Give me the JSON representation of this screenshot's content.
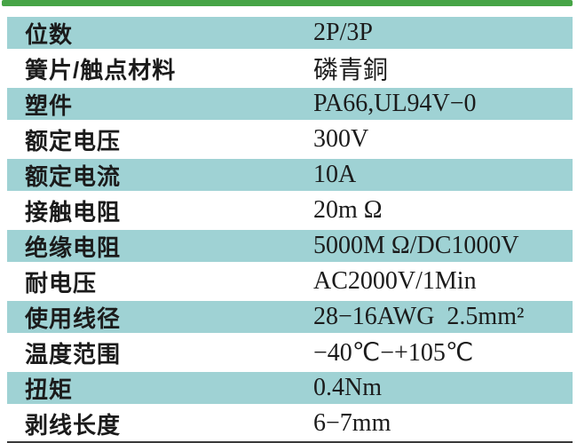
{
  "colors": {
    "accent_green": "#46a446",
    "row_teal": "#9fd2d4",
    "text_ink": "#1b1b1b",
    "bottom_line": "#3a3a3a"
  },
  "table": {
    "rows": [
      {
        "label": "位数",
        "value": "2P/3P"
      },
      {
        "label": "簧片/触点材料",
        "value": "磷青銅"
      },
      {
        "label": "塑件",
        "value": "PA66,UL94V−0"
      },
      {
        "label": "额定电压",
        "value": "300V"
      },
      {
        "label": "额定电流",
        "value": "10A"
      },
      {
        "label": "接触电阻",
        "value": "20m Ω"
      },
      {
        "label": "绝缘电阻",
        "value": "5000M Ω/DC1000V"
      },
      {
        "label": "耐电压",
        "value": "AC2000V/1Min"
      },
      {
        "label": "使用线径",
        "value": "28−16AWG  2.5mm²"
      },
      {
        "label": "温度范围",
        "value": "−40℃−+105℃"
      },
      {
        "label": "扭矩",
        "value": "0.4Nm"
      },
      {
        "label": "剥线长度",
        "value": "6−7mm"
      }
    ]
  }
}
